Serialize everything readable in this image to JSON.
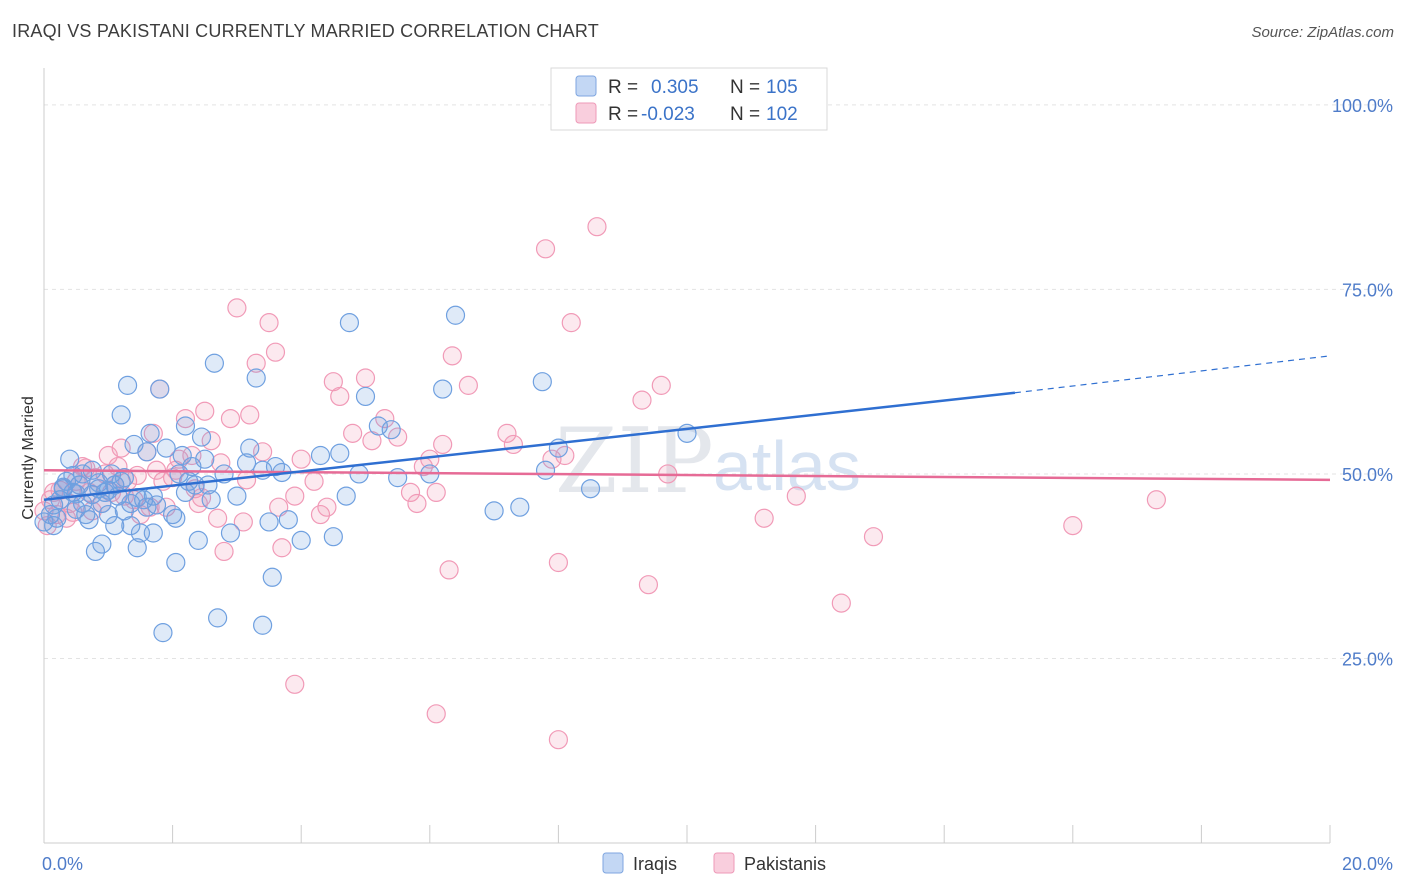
{
  "header": {
    "title": "IRAQI VS PAKISTANI CURRENTLY MARRIED CORRELATION CHART",
    "source": "Source: ZipAtlas.com"
  },
  "legend": {
    "r_label": "R =",
    "n_label": "N =",
    "iraqis": {
      "r": "0.305",
      "n": "105"
    },
    "pakistanis": {
      "r": "-0.023",
      "n": "102"
    }
  },
  "bottom_legend": {
    "iraqis": "Iraqis",
    "pakistanis": "Pakistanis"
  },
  "watermark": {
    "zip": "ZIP",
    "atlas": "atlas"
  },
  "colors": {
    "iraqi": "#6fa0e0",
    "iraqi_line": "#2f6fd1",
    "pakistani": "#f19ab7",
    "pakistani_line": "#e66b96",
    "tick": "#4f7cc9"
  },
  "chart_data": {
    "type": "scatter",
    "ylabel": "Currently Married",
    "xlim": [
      0,
      20
    ],
    "ylim": [
      0,
      105
    ],
    "x_tick_labels": [
      {
        "v": 0,
        "label": "0.0%"
      },
      {
        "v": 20,
        "label": "20.0%"
      }
    ],
    "y_tick_labels": [
      {
        "v": 100,
        "label": "100.0%"
      },
      {
        "v": 75,
        "label": "75.0%"
      },
      {
        "v": 50,
        "label": "50.0%"
      },
      {
        "v": 25,
        "label": "25.0%"
      }
    ],
    "gridlines_y": [
      25,
      50,
      75,
      100
    ],
    "series": [
      {
        "name": "Iraqis",
        "trend": {
          "x0": 0,
          "y0": 46.5,
          "x1": 15.1,
          "y1": 61.0,
          "dash_x1": 20,
          "dash_y1": 66.0
        },
        "points": [
          [
            0.0,
            43.5
          ],
          [
            0.1,
            44.5
          ],
          [
            0.15,
            45.8
          ],
          [
            0.2,
            44.0
          ],
          [
            0.25,
            46.5
          ],
          [
            0.3,
            48.0
          ],
          [
            0.35,
            49.0
          ],
          [
            0.4,
            52.0
          ],
          [
            0.45,
            47.5
          ],
          [
            0.5,
            45.2
          ],
          [
            0.55,
            48.5
          ],
          [
            0.6,
            50.0
          ],
          [
            0.65,
            44.5
          ],
          [
            0.7,
            43.8
          ],
          [
            0.75,
            47.2
          ],
          [
            0.8,
            39.5
          ],
          [
            0.85,
            48.0
          ],
          [
            0.9,
            46.0
          ],
          [
            0.95,
            47.5
          ],
          [
            1.0,
            44.5
          ],
          [
            1.05,
            50.0
          ],
          [
            1.1,
            48.5
          ],
          [
            1.15,
            47.0
          ],
          [
            1.2,
            58.0
          ],
          [
            1.25,
            45.0
          ],
          [
            1.3,
            62.0
          ],
          [
            1.35,
            43.0
          ],
          [
            1.4,
            54.0
          ],
          [
            1.45,
            40.0
          ],
          [
            1.5,
            42.0
          ],
          [
            1.55,
            46.5
          ],
          [
            1.6,
            53.0
          ],
          [
            1.65,
            55.5
          ],
          [
            1.7,
            47.0
          ],
          [
            1.75,
            45.8
          ],
          [
            1.8,
            61.5
          ],
          [
            1.85,
            28.5
          ],
          [
            1.9,
            53.5
          ],
          [
            2.0,
            44.5
          ],
          [
            2.05,
            38.0
          ],
          [
            2.1,
            50.0
          ],
          [
            2.15,
            52.5
          ],
          [
            2.2,
            56.5
          ],
          [
            2.25,
            49.0
          ],
          [
            2.3,
            51.0
          ],
          [
            2.35,
            48.5
          ],
          [
            2.4,
            41.0
          ],
          [
            2.45,
            55.0
          ],
          [
            2.5,
            52.0
          ],
          [
            2.6,
            46.5
          ],
          [
            2.65,
            65.0
          ],
          [
            2.7,
            30.5
          ],
          [
            2.8,
            50.0
          ],
          [
            2.9,
            42.0
          ],
          [
            3.0,
            47.0
          ],
          [
            3.2,
            53.5
          ],
          [
            3.3,
            63.0
          ],
          [
            3.4,
            50.5
          ],
          [
            3.5,
            43.5
          ],
          [
            3.55,
            36.0
          ],
          [
            3.4,
            29.5
          ],
          [
            3.6,
            51.0
          ],
          [
            3.8,
            43.8
          ],
          [
            4.0,
            41.0
          ],
          [
            4.3,
            52.5
          ],
          [
            4.5,
            41.5
          ],
          [
            4.6,
            52.8
          ],
          [
            4.7,
            47.0
          ],
          [
            4.9,
            50.0
          ],
          [
            5.0,
            60.5
          ],
          [
            5.2,
            56.5
          ],
          [
            5.4,
            56.0
          ],
          [
            5.5,
            49.5
          ],
          [
            6.0,
            50.0
          ],
          [
            6.2,
            61.5
          ],
          [
            6.4,
            71.5
          ],
          [
            7.0,
            45.0
          ],
          [
            7.4,
            45.5
          ],
          [
            7.8,
            50.5
          ],
          [
            8.0,
            53.5
          ],
          [
            8.5,
            48.0
          ],
          [
            10.0,
            55.5
          ],
          [
            1.2,
            49.0
          ],
          [
            0.6,
            46.0
          ],
          [
            0.9,
            40.5
          ],
          [
            1.1,
            43.0
          ],
          [
            1.35,
            46.0
          ],
          [
            1.6,
            45.5
          ],
          [
            2.05,
            44.0
          ],
          [
            1.45,
            46.8
          ],
          [
            2.55,
            48.5
          ],
          [
            3.15,
            51.5
          ],
          [
            4.75,
            70.5
          ],
          [
            7.75,
            62.5
          ],
          [
            0.3,
            48.2
          ],
          [
            0.75,
            50.5
          ],
          [
            0.5,
            47.3
          ],
          [
            1.0,
            47.8
          ],
          [
            1.7,
            42.0
          ],
          [
            2.2,
            47.5
          ],
          [
            0.45,
            49.8
          ],
          [
            0.85,
            48.8
          ],
          [
            1.25,
            49.5
          ],
          [
            3.7,
            50.2
          ],
          [
            0.15,
            43.0
          ]
        ]
      },
      {
        "name": "Pakistanis",
        "trend": {
          "x0": 0,
          "y0": 50.5,
          "x1": 20,
          "y1": 49.2
        },
        "points": [
          [
            0.0,
            45.0
          ],
          [
            0.1,
            46.5
          ],
          [
            0.15,
            47.5
          ],
          [
            0.2,
            44.5
          ],
          [
            0.3,
            48.0
          ],
          [
            0.35,
            44.0
          ],
          [
            0.4,
            46.0
          ],
          [
            0.5,
            49.0
          ],
          [
            0.6,
            51.0
          ],
          [
            0.7,
            47.5
          ],
          [
            0.8,
            49.5
          ],
          [
            0.9,
            46.0
          ],
          [
            1.0,
            52.5
          ],
          [
            1.05,
            47.5
          ],
          [
            1.15,
            51.0
          ],
          [
            1.2,
            53.5
          ],
          [
            1.3,
            49.0
          ],
          [
            1.4,
            46.5
          ],
          [
            1.5,
            44.5
          ],
          [
            1.6,
            53.0
          ],
          [
            1.7,
            55.5
          ],
          [
            1.75,
            50.5
          ],
          [
            1.8,
            61.5
          ],
          [
            1.9,
            45.5
          ],
          [
            2.0,
            49.5
          ],
          [
            2.1,
            52.0
          ],
          [
            2.2,
            57.5
          ],
          [
            2.3,
            52.5
          ],
          [
            2.4,
            46.0
          ],
          [
            2.5,
            58.5
          ],
          [
            2.6,
            54.5
          ],
          [
            2.7,
            44.0
          ],
          [
            2.8,
            39.5
          ],
          [
            2.9,
            57.5
          ],
          [
            3.0,
            72.5
          ],
          [
            3.1,
            43.5
          ],
          [
            3.2,
            58.0
          ],
          [
            3.3,
            65.0
          ],
          [
            3.4,
            53.0
          ],
          [
            3.5,
            70.5
          ],
          [
            3.6,
            66.5
          ],
          [
            3.65,
            45.5
          ],
          [
            3.7,
            40.0
          ],
          [
            3.9,
            47.0
          ],
          [
            4.0,
            52.0
          ],
          [
            4.2,
            49.0
          ],
          [
            4.3,
            44.5
          ],
          [
            4.4,
            45.5
          ],
          [
            4.5,
            62.5
          ],
          [
            4.6,
            60.5
          ],
          [
            4.8,
            55.5
          ],
          [
            5.0,
            63.0
          ],
          [
            5.1,
            54.5
          ],
          [
            5.3,
            57.5
          ],
          [
            5.5,
            55.0
          ],
          [
            5.7,
            47.5
          ],
          [
            5.8,
            46.0
          ],
          [
            5.9,
            51.0
          ],
          [
            6.0,
            52.0
          ],
          [
            6.1,
            47.5
          ],
          [
            6.2,
            54.0
          ],
          [
            6.35,
            66.0
          ],
          [
            6.6,
            62.0
          ],
          [
            6.3,
            37.0
          ],
          [
            7.2,
            55.5
          ],
          [
            7.3,
            54.0
          ],
          [
            7.9,
            52.0
          ],
          [
            8.0,
            38.0
          ],
          [
            8.1,
            52.5
          ],
          [
            8.2,
            70.5
          ],
          [
            8.6,
            83.5
          ],
          [
            7.8,
            80.5
          ],
          [
            9.3,
            60.0
          ],
          [
            9.4,
            35.0
          ],
          [
            9.6,
            62.0
          ],
          [
            9.7,
            50.0
          ],
          [
            11.2,
            44.0
          ],
          [
            11.7,
            47.0
          ],
          [
            12.4,
            32.5
          ],
          [
            12.9,
            41.5
          ],
          [
            3.9,
            21.5
          ],
          [
            6.1,
            17.5
          ],
          [
            8.0,
            14.0
          ],
          [
            16.0,
            43.0
          ],
          [
            17.3,
            46.5
          ],
          [
            0.25,
            47.8
          ],
          [
            0.45,
            44.8
          ],
          [
            0.55,
            48.5
          ],
          [
            0.95,
            50.0
          ],
          [
            1.25,
            47.0
          ],
          [
            1.45,
            49.8
          ],
          [
            1.65,
            45.5
          ],
          [
            2.05,
            50.5
          ],
          [
            2.35,
            48.0
          ],
          [
            2.45,
            46.8
          ],
          [
            2.75,
            51.5
          ],
          [
            3.15,
            49.2
          ],
          [
            0.05,
            43.0
          ],
          [
            0.65,
            50.8
          ],
          [
            1.85,
            49.0
          ],
          [
            1.1,
            48.5
          ],
          [
            0.75,
            45.0
          ]
        ]
      }
    ]
  }
}
